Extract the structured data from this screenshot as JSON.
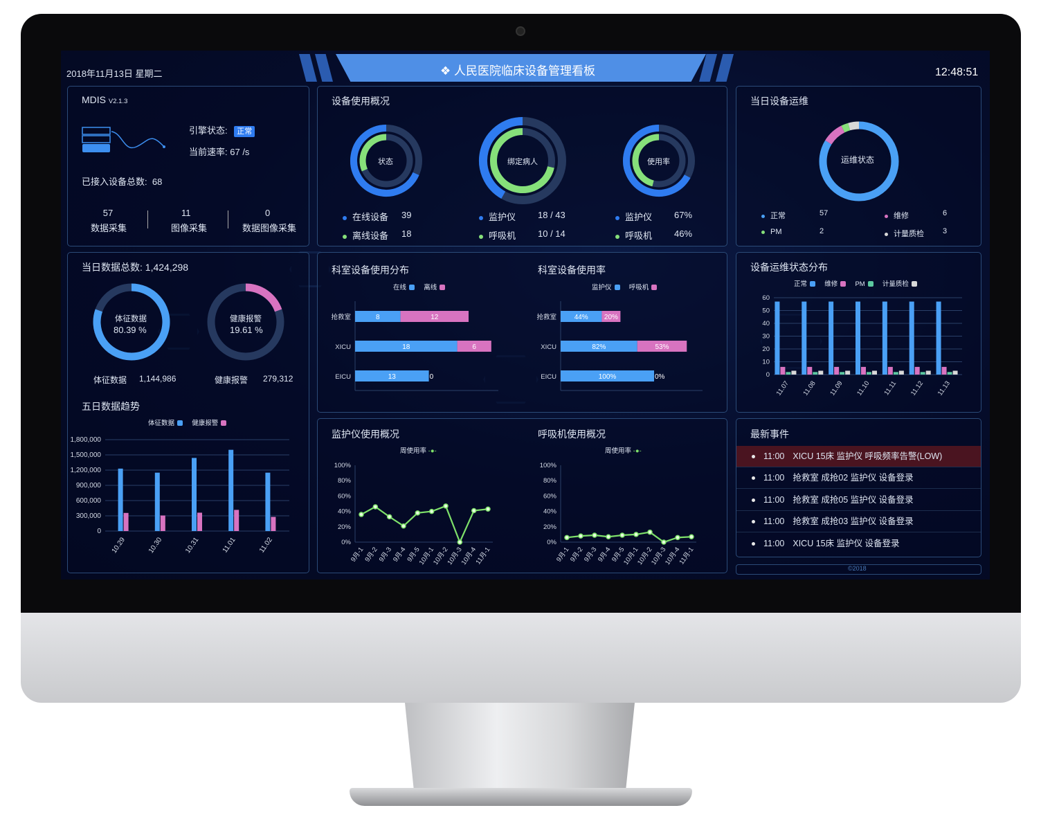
{
  "header": {
    "date": "2018年11月13日 星期二",
    "title": "人民医院临床设备管理看板",
    "title_icon": "diamonds-logo-icon",
    "time": "12:48:51"
  },
  "colors": {
    "accent": "#4f8fe6",
    "blue": "#4aa0f5",
    "ring_blue": "#2f7cf0",
    "pink": "#d873c0",
    "green": "#86e07a",
    "pm_green": "#5cc8a0",
    "gray": "#d8d8d8",
    "track": "#26395f",
    "alert_row": "#4a1420"
  },
  "mdis": {
    "name": "MDIS",
    "version": "V2.1.3",
    "engine_label": "引擎状态:",
    "engine_status": "正常",
    "rate_label": "当前速率:",
    "rate_value": "67 /s",
    "total_label": "已接入设备总数:",
    "total_value": "68",
    "icon": "server-wave-icon",
    "stats": [
      {
        "value": "57",
        "label": "数据采集"
      },
      {
        "value": "11",
        "label": "图像采集"
      },
      {
        "value": "0",
        "label": "数据图像采集"
      }
    ]
  },
  "usage": {
    "title": "设备使用概况",
    "donuts": [
      {
        "center": "状态",
        "outer": 0.684,
        "inner": 0.316,
        "legend": [
          {
            "label": "在线设备",
            "value": "39"
          },
          {
            "label": "离线设备",
            "value": "18"
          }
        ]
      },
      {
        "center": "绑定病人",
        "outer": 0.419,
        "inner": 0.714,
        "legend": [
          {
            "label": "监护仪",
            "value": "18 / 43"
          },
          {
            "label": "呼吸机",
            "value": "10 / 14"
          }
        ]
      },
      {
        "center": "使用率",
        "outer": 0.67,
        "inner": 0.46,
        "legend": [
          {
            "label": "监护仪",
            "value": "67%"
          },
          {
            "label": "呼吸机",
            "value": "46%"
          }
        ]
      }
    ]
  },
  "ops": {
    "title": "当日设备运维",
    "center": "运维状态",
    "items": [
      {
        "label": "正常",
        "value": 57,
        "color": "#4aa0f5"
      },
      {
        "label": "维修",
        "value": 6,
        "color": "#d873c0"
      },
      {
        "label": "PM",
        "value": 2,
        "color": "#86e07a"
      },
      {
        "label": "计量质检",
        "value": 3,
        "color": "#d8d8d8"
      }
    ]
  },
  "daily": {
    "title": "当日数据总数:",
    "total": "1,424,298",
    "donuts": [
      {
        "name": "体征数据",
        "pct": "80.39 %",
        "frac": 0.8039,
        "color": "#4aa0f5",
        "label": "体征数据",
        "value": "1,144,986"
      },
      {
        "name": "健康报警",
        "pct": "19.61 %",
        "frac": 0.1961,
        "color": "#d873c0",
        "label": "健康报警",
        "value": "279,312"
      }
    ]
  },
  "events": {
    "title": "最新事件",
    "items": [
      {
        "time": "11:00",
        "text": "XICU 15床 监护仪 呼吸频率告警(LOW)",
        "alert": true
      },
      {
        "time": "11:00",
        "text": "抢救室 成抢02 监护仪 设备登录",
        "alert": false
      },
      {
        "time": "11:00",
        "text": "抢救室 成抢05 监护仪 设备登录",
        "alert": false
      },
      {
        "time": "11:00",
        "text": "抢救室 成抢03 监护仪 设备登录",
        "alert": false
      },
      {
        "time": "11:00",
        "text": "XICU 15床 监护仪 设备登录",
        "alert": false
      }
    ]
  },
  "footer": "©2018",
  "chart_data": [
    {
      "id": "trend",
      "type": "bar",
      "title": "五日数据趋势",
      "categories": [
        "10.29",
        "10.30",
        "10.31",
        "11.01",
        "11.02"
      ],
      "series": [
        {
          "name": "体征数据",
          "values": [
            1230000,
            1150000,
            1440000,
            1600000,
            1150000
          ]
        },
        {
          "name": "健康报警",
          "values": [
            357000,
            307000,
            362000,
            417000,
            279000
          ]
        }
      ],
      "yticks": [
        "0",
        "300,000",
        "600,000",
        "900,000",
        "1,200,000",
        "1,500,000",
        "1,800,000"
      ],
      "ylim": [
        0,
        1800000
      ],
      "grid": true,
      "legend": "top-center"
    },
    {
      "id": "dept_dist",
      "type": "bar",
      "orientation": "horizontal",
      "stacked": true,
      "title": "科室设备使用分布",
      "categories": [
        "抢救室",
        "XICU",
        "EICU"
      ],
      "series": [
        {
          "name": "在线",
          "values": [
            8,
            18,
            13
          ]
        },
        {
          "name": "离线",
          "values": [
            12,
            6,
            0
          ]
        }
      ],
      "legend": "top-center"
    },
    {
      "id": "dept_rate",
      "type": "bar",
      "orientation": "horizontal",
      "stacked": true,
      "title": "科室设备使用率",
      "categories": [
        "抢救室",
        "XICU",
        "EICU"
      ],
      "series": [
        {
          "name": "监护仪",
          "values": [
            44,
            82,
            100
          ]
        },
        {
          "name": "呼吸机",
          "values": [
            20,
            53,
            0
          ]
        }
      ],
      "value_suffix": "%",
      "legend": "top-center"
    },
    {
      "id": "ops_dist",
      "type": "bar",
      "title": "设备运维状态分布",
      "categories": [
        "11.07",
        "11.08",
        "11.09",
        "11.10",
        "11.11",
        "11.12",
        "11.13"
      ],
      "series": [
        {
          "name": "正常",
          "values": [
            57,
            57,
            57,
            57,
            57,
            57,
            57
          ]
        },
        {
          "name": "维修",
          "values": [
            6,
            6,
            6,
            6,
            6,
            6,
            6
          ]
        },
        {
          "name": "PM",
          "values": [
            2,
            2,
            2,
            2,
            2,
            2,
            2
          ]
        },
        {
          "name": "计量质检",
          "values": [
            3,
            3,
            3,
            3,
            3,
            3,
            3
          ]
        }
      ],
      "yticks": [
        "0",
        "10",
        "20",
        "30",
        "40",
        "50",
        "60"
      ],
      "ylim": [
        0,
        60
      ],
      "grid": true,
      "legend": "top-center"
    },
    {
      "id": "monitor_line",
      "type": "line",
      "title": "监护仪使用概况",
      "categories": [
        "9月-1",
        "9月-2",
        "9月-3",
        "9月-4",
        "9月-5",
        "10月-1",
        "10月-2",
        "10月-3",
        "10月-4",
        "11月-1"
      ],
      "series": [
        {
          "name": "周使用率",
          "values": [
            36,
            46,
            33,
            21,
            38,
            40,
            47,
            0,
            41,
            43
          ]
        }
      ],
      "yticks": [
        "0%",
        "20%",
        "40%",
        "60%",
        "80%",
        "100%"
      ],
      "ylim": [
        0,
        100
      ],
      "legend": "top-center"
    },
    {
      "id": "vent_line",
      "type": "line",
      "title": "呼吸机使用概况",
      "categories": [
        "9月-1",
        "9月-2",
        "9月-3",
        "9月-4",
        "9月-5",
        "10月-1",
        "10月-2",
        "10月-3",
        "10月-4",
        "11月-1"
      ],
      "series": [
        {
          "name": "周使用率",
          "values": [
            6,
            8,
            9,
            7,
            9,
            10,
            13,
            0,
            6,
            7
          ]
        }
      ],
      "yticks": [
        "0%",
        "20%",
        "40%",
        "60%",
        "80%",
        "100%"
      ],
      "ylim": [
        0,
        100
      ],
      "legend": "top-center"
    }
  ]
}
